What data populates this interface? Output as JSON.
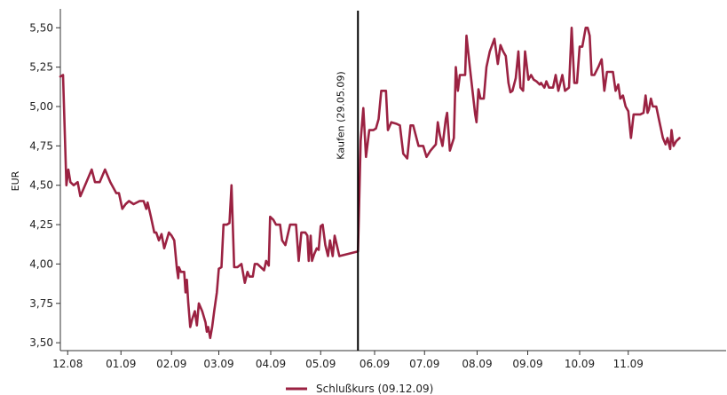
{
  "chart_data": {
    "type": "line",
    "title": "",
    "xlabel": "",
    "ylabel": "EUR",
    "ylim": [
      3.45,
      5.62
    ],
    "xlim": [
      0,
      1
    ],
    "grid": false,
    "legend_placement": "bottom-center",
    "yticks": [
      3.5,
      3.75,
      4.0,
      4.25,
      4.5,
      4.75,
      5.0,
      5.25,
      5.5
    ],
    "ytick_labels": [
      "3,50",
      "3,75",
      "4,00",
      "4,25",
      "4,50",
      "4,75",
      "5,00",
      "5,25",
      "5,50"
    ],
    "xticks": [
      {
        "label": "12.08",
        "x": 0.011
      },
      {
        "label": "01.09",
        "x": 0.091
      },
      {
        "label": "02.09",
        "x": 0.167
      },
      {
        "label": "03.09",
        "x": 0.238
      },
      {
        "label": "04.09",
        "x": 0.316
      },
      {
        "label": "05.09",
        "x": 0.391
      },
      {
        "label": "06.09",
        "x": 0.472
      },
      {
        "label": "07.09",
        "x": 0.547
      },
      {
        "label": "08.09",
        "x": 0.626
      },
      {
        "label": "09.09",
        "x": 0.702
      },
      {
        "label": "10.09",
        "x": 0.78
      },
      {
        "label": "11.09",
        "x": 0.853
      }
    ],
    "annotation": {
      "label": "Kaufen (29.05.09)",
      "x": 0.447
    },
    "series": [
      {
        "name": "Schlußkurs (09.12.09)",
        "color": "#9b2242",
        "points": [
          [
            0.0,
            5.19
          ],
          [
            0.004,
            5.2
          ],
          [
            0.009,
            4.5
          ],
          [
            0.012,
            4.6
          ],
          [
            0.015,
            4.52
          ],
          [
            0.02,
            4.5
          ],
          [
            0.026,
            4.52
          ],
          [
            0.03,
            4.43
          ],
          [
            0.039,
            4.52
          ],
          [
            0.047,
            4.6
          ],
          [
            0.052,
            4.52
          ],
          [
            0.059,
            4.52
          ],
          [
            0.067,
            4.6
          ],
          [
            0.075,
            4.52
          ],
          [
            0.084,
            4.45
          ],
          [
            0.088,
            4.45
          ],
          [
            0.093,
            4.35
          ],
          [
            0.098,
            4.38
          ],
          [
            0.103,
            4.4
          ],
          [
            0.11,
            4.38
          ],
          [
            0.119,
            4.4
          ],
          [
            0.125,
            4.4
          ],
          [
            0.129,
            4.35
          ],
          [
            0.131,
            4.39
          ],
          [
            0.136,
            4.3
          ],
          [
            0.141,
            4.2
          ],
          [
            0.144,
            4.2
          ],
          [
            0.148,
            4.15
          ],
          [
            0.152,
            4.19
          ],
          [
            0.156,
            4.1
          ],
          [
            0.163,
            4.2
          ],
          [
            0.167,
            4.18
          ],
          [
            0.171,
            4.15
          ],
          [
            0.175,
            3.97
          ],
          [
            0.177,
            3.91
          ],
          [
            0.178,
            3.98
          ],
          [
            0.181,
            3.95
          ],
          [
            0.186,
            3.95
          ],
          [
            0.188,
            3.82
          ],
          [
            0.19,
            3.9
          ],
          [
            0.192,
            3.76
          ],
          [
            0.195,
            3.6
          ],
          [
            0.198,
            3.65
          ],
          [
            0.202,
            3.7
          ],
          [
            0.205,
            3.61
          ],
          [
            0.208,
            3.75
          ],
          [
            0.213,
            3.7
          ],
          [
            0.218,
            3.63
          ],
          [
            0.22,
            3.57
          ],
          [
            0.222,
            3.6
          ],
          [
            0.225,
            3.53
          ],
          [
            0.228,
            3.6
          ],
          [
            0.231,
            3.7
          ],
          [
            0.235,
            3.82
          ],
          [
            0.238,
            3.97
          ],
          [
            0.242,
            3.98
          ],
          [
            0.245,
            4.25
          ],
          [
            0.25,
            4.25
          ],
          [
            0.254,
            4.26
          ],
          [
            0.257,
            4.5
          ],
          [
            0.261,
            3.98
          ],
          [
            0.266,
            3.98
          ],
          [
            0.272,
            4.0
          ],
          [
            0.277,
            3.88
          ],
          [
            0.281,
            3.95
          ],
          [
            0.284,
            3.92
          ],
          [
            0.289,
            3.92
          ],
          [
            0.292,
            4.0
          ],
          [
            0.296,
            4.0
          ],
          [
            0.301,
            3.98
          ],
          [
            0.306,
            3.96
          ],
          [
            0.309,
            4.02
          ],
          [
            0.313,
            3.99
          ],
          [
            0.315,
            4.3
          ],
          [
            0.32,
            4.28
          ],
          [
            0.324,
            4.25
          ],
          [
            0.33,
            4.25
          ],
          [
            0.333,
            4.15
          ],
          [
            0.338,
            4.12
          ],
          [
            0.345,
            4.25
          ],
          [
            0.354,
            4.25
          ],
          [
            0.358,
            4.02
          ],
          [
            0.362,
            4.2
          ],
          [
            0.368,
            4.2
          ],
          [
            0.371,
            4.18
          ],
          [
            0.373,
            4.02
          ],
          [
            0.376,
            4.18
          ],
          [
            0.378,
            4.02
          ],
          [
            0.381,
            4.06
          ],
          [
            0.385,
            4.1
          ],
          [
            0.388,
            4.09
          ],
          [
            0.391,
            4.24
          ],
          [
            0.394,
            4.25
          ],
          [
            0.398,
            4.12
          ],
          [
            0.402,
            4.05
          ],
          [
            0.405,
            4.15
          ],
          [
            0.409,
            4.05
          ],
          [
            0.412,
            4.18
          ],
          [
            0.419,
            4.05
          ],
          [
            0.447,
            4.08
          ],
          [
            0.451,
            4.78
          ],
          [
            0.455,
            4.99
          ],
          [
            0.459,
            4.68
          ],
          [
            0.464,
            4.85
          ],
          [
            0.47,
            4.85
          ],
          [
            0.474,
            4.86
          ],
          [
            0.478,
            4.92
          ],
          [
            0.482,
            5.1
          ],
          [
            0.489,
            5.1
          ],
          [
            0.492,
            4.85
          ],
          [
            0.497,
            4.9
          ],
          [
            0.505,
            4.89
          ],
          [
            0.51,
            4.88
          ],
          [
            0.515,
            4.7
          ],
          [
            0.521,
            4.67
          ],
          [
            0.526,
            4.88
          ],
          [
            0.53,
            4.88
          ],
          [
            0.538,
            4.75
          ],
          [
            0.545,
            4.75
          ],
          [
            0.55,
            4.68
          ],
          [
            0.556,
            4.72
          ],
          [
            0.564,
            4.76
          ],
          [
            0.567,
            4.9
          ],
          [
            0.57,
            4.82
          ],
          [
            0.574,
            4.75
          ],
          [
            0.579,
            4.92
          ],
          [
            0.581,
            4.96
          ],
          [
            0.585,
            4.72
          ],
          [
            0.591,
            4.8
          ],
          [
            0.594,
            5.25
          ],
          [
            0.597,
            5.1
          ],
          [
            0.6,
            5.2
          ],
          [
            0.608,
            5.2
          ],
          [
            0.61,
            5.45
          ],
          [
            0.615,
            5.25
          ],
          [
            0.619,
            5.1
          ],
          [
            0.623,
            4.95
          ],
          [
            0.625,
            4.9
          ],
          [
            0.628,
            5.11
          ],
          [
            0.631,
            5.05
          ],
          [
            0.636,
            5.05
          ],
          [
            0.64,
            5.25
          ],
          [
            0.645,
            5.35
          ],
          [
            0.652,
            5.43
          ],
          [
            0.657,
            5.27
          ],
          [
            0.661,
            5.39
          ],
          [
            0.665,
            5.35
          ],
          [
            0.669,
            5.32
          ],
          [
            0.673,
            5.15
          ],
          [
            0.676,
            5.09
          ],
          [
            0.679,
            5.1
          ],
          [
            0.684,
            5.18
          ],
          [
            0.688,
            5.35
          ],
          [
            0.691,
            5.12
          ],
          [
            0.695,
            5.1
          ],
          [
            0.698,
            5.35
          ],
          [
            0.703,
            5.17
          ],
          [
            0.707,
            5.2
          ],
          [
            0.711,
            5.17
          ],
          [
            0.715,
            5.16
          ],
          [
            0.72,
            5.14
          ],
          [
            0.722,
            5.15
          ],
          [
            0.727,
            5.12
          ],
          [
            0.73,
            5.16
          ],
          [
            0.734,
            5.12
          ],
          [
            0.737,
            5.12
          ],
          [
            0.74,
            5.12
          ],
          [
            0.744,
            5.2
          ],
          [
            0.748,
            5.1
          ],
          [
            0.751,
            5.15
          ],
          [
            0.754,
            5.2
          ],
          [
            0.758,
            5.1
          ],
          [
            0.764,
            5.12
          ],
          [
            0.768,
            5.5
          ],
          [
            0.772,
            5.15
          ],
          [
            0.776,
            5.15
          ],
          [
            0.78,
            5.38
          ],
          [
            0.784,
            5.38
          ],
          [
            0.789,
            5.5
          ],
          [
            0.792,
            5.5
          ],
          [
            0.795,
            5.45
          ],
          [
            0.798,
            5.2
          ],
          [
            0.802,
            5.2
          ],
          [
            0.808,
            5.25
          ],
          [
            0.813,
            5.3
          ],
          [
            0.817,
            5.1
          ],
          [
            0.821,
            5.22
          ],
          [
            0.826,
            5.22
          ],
          [
            0.83,
            5.22
          ],
          [
            0.834,
            5.1
          ],
          [
            0.838,
            5.14
          ],
          [
            0.841,
            5.05
          ],
          [
            0.845,
            5.07
          ],
          [
            0.849,
            5.0
          ],
          [
            0.853,
            4.97
          ],
          [
            0.857,
            4.8
          ],
          [
            0.861,
            4.95
          ],
          [
            0.867,
            4.95
          ],
          [
            0.871,
            4.95
          ],
          [
            0.876,
            4.96
          ],
          [
            0.879,
            5.07
          ],
          [
            0.882,
            4.96
          ],
          [
            0.884,
            4.98
          ],
          [
            0.887,
            5.05
          ],
          [
            0.89,
            5.0
          ],
          [
            0.895,
            5.0
          ],
          [
            0.9,
            4.9
          ],
          [
            0.905,
            4.8
          ],
          [
            0.909,
            4.76
          ],
          [
            0.912,
            4.8
          ],
          [
            0.916,
            4.73
          ],
          [
            0.918,
            4.85
          ],
          [
            0.921,
            4.75
          ],
          [
            0.925,
            4.78
          ],
          [
            0.93,
            4.8
          ]
        ]
      }
    ]
  }
}
